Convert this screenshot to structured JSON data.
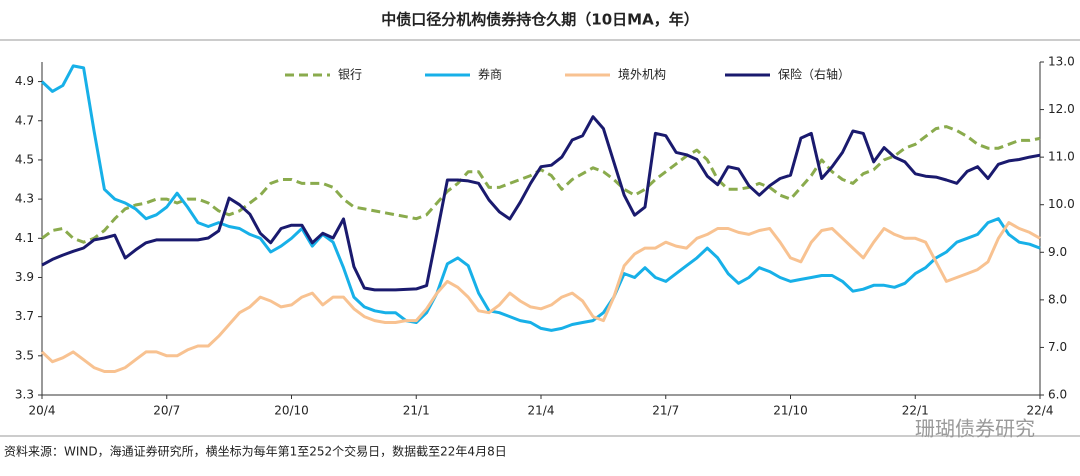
{
  "chart_data": {
    "type": "line",
    "title": "中债口径分机构债券持仓久期（10日MA，年）",
    "source": "资料来源：WIND，海通证券研究所，横坐标为每年第1至252个交易日，数据截至22年4月8日",
    "watermark": "珊瑚债券研究",
    "legend": "top",
    "categories": [
      "20/4",
      null,
      null,
      null,
      null,
      null,
      null,
      null,
      null,
      null,
      null,
      null,
      "20/7",
      null,
      null,
      null,
      null,
      null,
      null,
      null,
      null,
      null,
      null,
      null,
      "20/10",
      null,
      null,
      null,
      null,
      null,
      null,
      null,
      null,
      null,
      null,
      null,
      "21/1",
      null,
      null,
      null,
      null,
      null,
      null,
      null,
      null,
      null,
      null,
      null,
      "21/4",
      null,
      null,
      null,
      null,
      null,
      null,
      null,
      null,
      null,
      null,
      null,
      "21/7",
      null,
      null,
      null,
      null,
      null,
      null,
      null,
      null,
      null,
      null,
      null,
      "21/10",
      null,
      null,
      null,
      null,
      null,
      null,
      null,
      null,
      null,
      null,
      null,
      "22/1",
      null,
      null,
      null,
      null,
      null,
      null,
      null,
      null,
      null,
      null,
      null,
      "22/4"
    ],
    "ylim": [
      3.3,
      5.0
    ],
    "yticks": [
      3.3,
      3.5,
      3.7,
      3.9,
      4.1,
      4.3,
      4.5,
      4.7,
      4.9
    ],
    "y2lim": [
      6,
      13
    ],
    "y2ticks": [
      {
        "value": 6,
        "label": "6.0"
      },
      {
        "value": 7,
        "label": "7.0"
      },
      {
        "value": 8,
        "label": "8.0"
      },
      {
        "value": 9,
        "label": "9.0"
      },
      {
        "value": 10,
        "label": "10.0"
      },
      {
        "value": 11,
        "label": "11.0"
      },
      {
        "value": 12,
        "label": "12.0"
      },
      {
        "value": 13,
        "label": "13.0"
      }
    ],
    "series": [
      {
        "name": "银行",
        "color": "#8aab4d",
        "line_style": "dashed",
        "values": [
          4.1,
          4.14,
          4.15,
          4.1,
          4.08,
          4.1,
          4.14,
          4.2,
          4.25,
          4.27,
          4.28,
          4.3,
          4.3,
          4.28,
          4.3,
          4.3,
          4.28,
          4.24,
          4.22,
          4.24,
          4.28,
          4.32,
          4.38,
          4.4,
          4.4,
          4.38,
          4.38,
          4.38,
          4.36,
          4.3,
          4.26,
          4.25,
          4.24,
          4.23,
          4.22,
          4.21,
          4.2,
          4.22,
          4.28,
          4.34,
          4.38,
          4.44,
          4.44,
          4.36,
          4.36,
          4.38,
          4.4,
          4.42,
          4.45,
          4.42,
          4.35,
          4.4,
          4.43,
          4.46,
          4.44,
          4.4,
          4.35,
          4.32,
          4.35,
          4.4,
          4.44,
          4.48,
          4.52,
          4.55,
          4.5,
          4.4,
          4.35,
          4.35,
          4.36,
          4.38,
          4.36,
          4.32,
          4.3,
          4.36,
          4.42,
          4.5,
          4.44,
          4.4,
          4.38,
          4.43,
          4.45,
          4.5,
          4.52,
          4.56,
          4.58,
          4.62,
          4.66,
          4.67,
          4.65,
          4.62,
          4.58,
          4.56,
          4.56,
          4.58,
          4.6,
          4.6,
          4.61
        ]
      },
      {
        "name": "券商",
        "color": "#17b0e8",
        "line_style": "solid",
        "values": [
          4.9,
          4.85,
          4.88,
          4.98,
          4.97,
          4.65,
          4.35,
          4.3,
          4.28,
          4.25,
          4.2,
          4.22,
          4.26,
          4.33,
          4.26,
          4.18,
          4.16,
          4.18,
          4.16,
          4.15,
          4.12,
          4.1,
          4.03,
          4.06,
          4.1,
          4.15,
          4.06,
          4.12,
          4.08,
          3.95,
          3.8,
          3.75,
          3.73,
          3.72,
          3.72,
          3.68,
          3.67,
          3.72,
          3.82,
          3.97,
          4.0,
          3.96,
          3.82,
          3.73,
          3.72,
          3.7,
          3.68,
          3.67,
          3.64,
          3.63,
          3.64,
          3.66,
          3.67,
          3.68,
          3.72,
          3.8,
          3.92,
          3.9,
          3.95,
          3.9,
          3.88,
          3.92,
          3.96,
          4.0,
          4.05,
          4.0,
          3.92,
          3.87,
          3.9,
          3.95,
          3.93,
          3.9,
          3.88,
          3.89,
          3.9,
          3.91,
          3.91,
          3.88,
          3.83,
          3.84,
          3.86,
          3.86,
          3.85,
          3.87,
          3.92,
          3.95,
          4.0,
          4.03,
          4.08,
          4.1,
          4.12,
          4.18,
          4.2,
          4.12,
          4.08,
          4.07,
          4.05
        ]
      },
      {
        "name": "境外机构",
        "color": "#f8c291",
        "line_style": "solid",
        "values": [
          3.52,
          3.47,
          3.49,
          3.52,
          3.48,
          3.44,
          3.42,
          3.42,
          3.44,
          3.48,
          3.52,
          3.52,
          3.5,
          3.5,
          3.53,
          3.55,
          3.55,
          3.6,
          3.66,
          3.72,
          3.75,
          3.8,
          3.78,
          3.75,
          3.76,
          3.8,
          3.82,
          3.76,
          3.8,
          3.8,
          3.74,
          3.7,
          3.68,
          3.67,
          3.67,
          3.68,
          3.68,
          3.74,
          3.82,
          3.88,
          3.85,
          3.8,
          3.73,
          3.72,
          3.76,
          3.82,
          3.78,
          3.75,
          3.74,
          3.76,
          3.8,
          3.82,
          3.78,
          3.7,
          3.68,
          3.8,
          3.96,
          4.02,
          4.05,
          4.05,
          4.08,
          4.06,
          4.05,
          4.1,
          4.12,
          4.15,
          4.15,
          4.13,
          4.12,
          4.14,
          4.15,
          4.08,
          4.0,
          3.98,
          4.08,
          4.14,
          4.15,
          4.1,
          4.05,
          4.0,
          4.08,
          4.15,
          4.12,
          4.1,
          4.1,
          4.08,
          3.98,
          3.88,
          3.9,
          3.92,
          3.94,
          3.98,
          4.1,
          4.18,
          4.15,
          4.13,
          4.1
        ]
      },
      {
        "name": "保险（右轴）",
        "color": "#1a1a6e",
        "line_style": "solid",
        "axis": "y2",
        "values": [
          8.73,
          8.85,
          8.94,
          9.02,
          9.09,
          9.26,
          9.3,
          9.36,
          8.88,
          9.05,
          9.2,
          9.26,
          9.26,
          9.26,
          9.26,
          9.26,
          9.3,
          9.45,
          10.14,
          10.0,
          9.8,
          9.4,
          9.2,
          9.5,
          9.57,
          9.57,
          9.2,
          9.4,
          9.3,
          9.7,
          8.7,
          8.25,
          8.21,
          8.21,
          8.21,
          8.22,
          8.23,
          8.3,
          9.4,
          10.52,
          10.52,
          10.5,
          10.45,
          10.1,
          9.85,
          9.7,
          10.05,
          10.45,
          10.8,
          10.83,
          11.0,
          11.36,
          11.45,
          11.85,
          11.6,
          10.9,
          10.2,
          9.78,
          9.95,
          11.5,
          11.45,
          11.1,
          11.05,
          10.95,
          10.6,
          10.42,
          10.8,
          10.75,
          10.4,
          10.2,
          10.4,
          10.55,
          10.62,
          11.4,
          11.5,
          10.55,
          10.8,
          11.1,
          11.55,
          11.5,
          10.9,
          11.2,
          11.0,
          10.9,
          10.65,
          10.6,
          10.58,
          10.52,
          10.45,
          10.7,
          10.8,
          10.55,
          10.85,
          10.92,
          10.95,
          11.0,
          11.04
        ]
      }
    ]
  }
}
